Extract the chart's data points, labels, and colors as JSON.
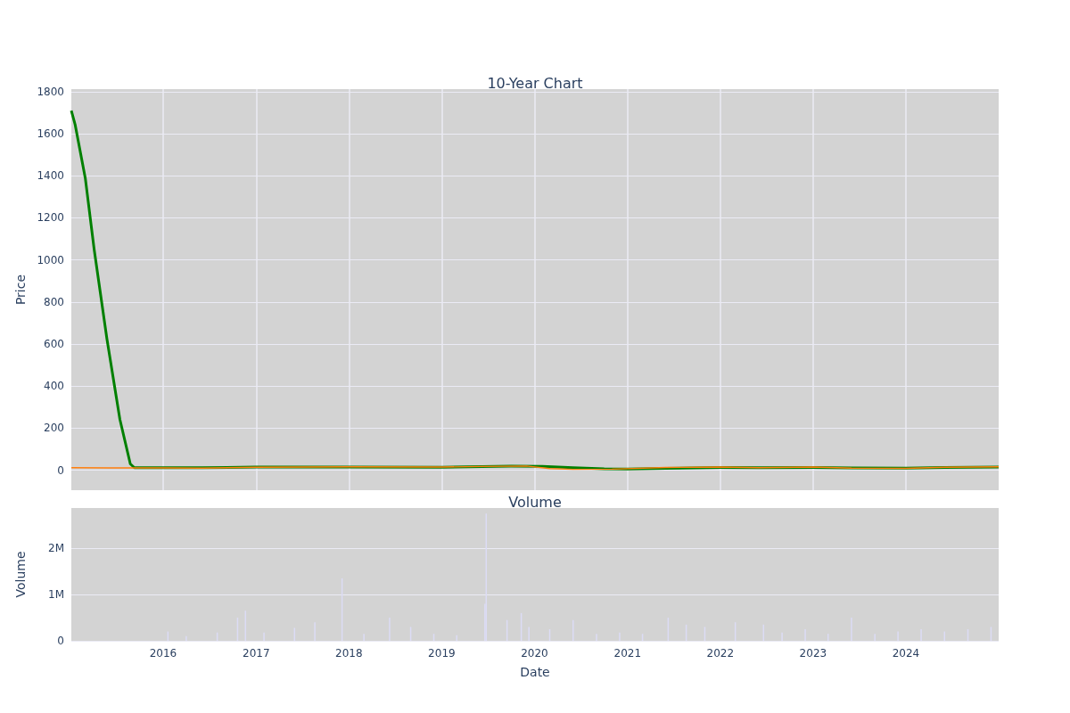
{
  "chart_data": [
    {
      "type": "line",
      "title": "10-Year Chart",
      "ylabel": "Price",
      "xlim": [
        "2015-01-05",
        "2024-12-31"
      ],
      "ylim": [
        -95,
        1812
      ],
      "yticks": [
        0,
        200,
        400,
        600,
        800,
        1000,
        1200,
        1400,
        1600,
        1800
      ],
      "xticks": [
        "2016",
        "2017",
        "2018",
        "2019",
        "2020",
        "2021",
        "2022",
        "2023",
        "2024"
      ],
      "tick_labels": "y",
      "grid": true,
      "marker": "none",
      "line_style": "solid",
      "series": [
        {
          "color": "#ff7f0e",
          "x": [
            "2015-01-05",
            "2015-06-01",
            "2016-01-01",
            "2016-06-01",
            "2017-01-01",
            "2018-01-01",
            "2019-01-01",
            "2019-06-01",
            "2019-12-01",
            "2020-03-01",
            "2020-06-01",
            "2020-11-01",
            "2021-06-01",
            "2022-01-01",
            "2022-06-01",
            "2023-01-01",
            "2023-06-01",
            "2024-01-01",
            "2024-06-01",
            "2024-12-31"
          ],
          "values": [
            12,
            11,
            11,
            10,
            14,
            16,
            15,
            18,
            20,
            8,
            4,
            5,
            13,
            15,
            12,
            15,
            10,
            9,
            14,
            16
          ]
        },
        {
          "color": "#008000",
          "x": [
            "2015-01-05",
            "2015-01-20",
            "2015-03-01",
            "2015-04-05",
            "2015-05-25",
            "2015-07-15",
            "2015-08-25",
            "2015-09-10",
            "2016-06-01",
            "2017-01-01",
            "2018-01-01",
            "2019-01-01",
            "2019-10-01",
            "2020-02-01",
            "2020-06-01",
            "2020-10-01",
            "2021-01-01",
            "2021-06-01",
            "2022-01-01",
            "2022-06-01",
            "2023-01-01",
            "2023-06-01",
            "2024-01-01",
            "2024-06-01",
            "2024-12-31"
          ],
          "values": [
            1710,
            1643,
            1388,
            1048,
            624,
            242,
            30,
            12,
            12,
            15,
            15,
            14,
            19,
            18,
            12,
            7,
            6,
            9,
            13,
            12,
            13,
            11,
            10,
            13,
            15
          ]
        }
      ]
    },
    {
      "type": "bar",
      "title": "Volume",
      "xlabel": "Date",
      "ylabel": "Volume",
      "xlim": [
        "2015-01-05",
        "2024-12-31"
      ],
      "ylim": [
        0,
        2870000
      ],
      "yticks": [
        0,
        {
          "value": 1000000,
          "label": "1M"
        },
        {
          "value": 2000000,
          "label": "2M"
        }
      ],
      "xticks": [
        "2016",
        "2017",
        "2018",
        "2019",
        "2020",
        "2021",
        "2022",
        "2023",
        "2024"
      ],
      "grid": "y",
      "series": [
        {
          "color": "#dcdcf5",
          "x": [
            "2016-01-20",
            "2016-04-01",
            "2016-08-01",
            "2016-10-20",
            "2016-11-20",
            "2017-02-01",
            "2017-06-01",
            "2017-08-20",
            "2017-12-05",
            "2018-03-01",
            "2018-06-10",
            "2018-09-01",
            "2018-12-01",
            "2019-03-01",
            "2019-06-20",
            "2019-06-25",
            "2019-09-15",
            "2019-11-10",
            "2019-12-10",
            "2020-03-01",
            "2020-06-01",
            "2020-09-01",
            "2020-12-01",
            "2021-03-01",
            "2021-06-10",
            "2021-08-20",
            "2021-11-01",
            "2022-03-01",
            "2022-06-20",
            "2022-09-01",
            "2022-12-01",
            "2023-03-01",
            "2023-06-01",
            "2023-09-01",
            "2023-12-01",
            "2024-03-01",
            "2024-06-01",
            "2024-09-01",
            "2024-12-01"
          ],
          "values": [
            200000,
            100000,
            180000,
            500000,
            650000,
            180000,
            280000,
            400000,
            1350000,
            150000,
            500000,
            300000,
            150000,
            120000,
            800000,
            2750000,
            450000,
            600000,
            300000,
            250000,
            450000,
            150000,
            180000,
            150000,
            500000,
            350000,
            300000,
            400000,
            350000,
            180000,
            250000,
            150000,
            500000,
            150000,
            200000,
            250000,
            200000,
            250000,
            300000
          ]
        }
      ]
    }
  ]
}
